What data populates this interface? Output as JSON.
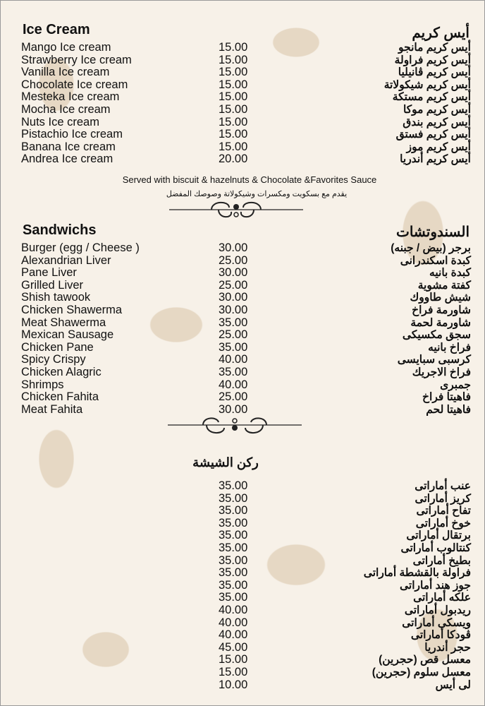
{
  "ice_cream": {
    "title_en": "Ice Cream",
    "title_ar": "أيس كريم",
    "items": [
      {
        "en": "Mango Ice cream",
        "price": "15.00",
        "ar": "أيس كريم مانجو"
      },
      {
        "en": "Strawberry Ice cream",
        "price": "15.00",
        "ar": "أيس كريم فراولة"
      },
      {
        "en": "Vanilla Ice cream",
        "price": "15.00",
        "ar": "أيس كريم ڤانيليا"
      },
      {
        "en": "Chocolate Ice cream",
        "price": "15.00",
        "ar": "أيس كريم شيكولاتة"
      },
      {
        "en": "Mesteka Ice cream",
        "price": "15.00",
        "ar": "أيس كريم مستكة"
      },
      {
        "en": "Mocha Ice cream",
        "price": "15.00",
        "ar": "أيس كريم موكا"
      },
      {
        "en": "Nuts Ice cream",
        "price": "15.00",
        "ar": "أيس كريم بندق"
      },
      {
        "en": "Pistachio Ice cream",
        "price": "15.00",
        "ar": "أيس كريم فستق"
      },
      {
        "en": "Banana Ice cream",
        "price": "15.00",
        "ar": "أيس كريم موز"
      },
      {
        "en": "Andrea Ice cream",
        "price": "20.00",
        "ar": "أيس كريم أندريا"
      }
    ],
    "note_en": "Served with biscuit & hazelnuts & Chocolate &Favorites Sauce",
    "note_ar": "يقدم مع بسكويت ومكسرات وشيكولاتة وصوصك المفضل"
  },
  "sandwiches": {
    "title_en": "Sandwichs",
    "title_ar": "السندوتشات",
    "items": [
      {
        "en": "Burger (egg / Cheese )",
        "price": "30.00",
        "ar": "برجر (بيض / جبنه)"
      },
      {
        "en": "Alexandrian Liver",
        "price": "25.00",
        "ar": "كبدة اسكندرانى"
      },
      {
        "en": "Pane Liver",
        "price": "30.00",
        "ar": "كبدة بانيه"
      },
      {
        "en": "Grilled Liver",
        "price": "25.00",
        "ar": "كفتة مشوية"
      },
      {
        "en": "Shish tawook",
        "price": "30.00",
        "ar": "شيش طاووك"
      },
      {
        "en": "Chicken Shawerma",
        "price": "30.00",
        "ar": "شاورمة فراخ"
      },
      {
        "en": "Meat Shawerma",
        "price": "35.00",
        "ar": "شاورمة لحمة"
      },
      {
        "en": "Mexican Sausage",
        "price": "25.00",
        "ar": "سجق مكسيكى"
      },
      {
        "en": "Chicken Pane",
        "price": "35.00",
        "ar": "فراخ بانيه"
      },
      {
        "en": "Spicy Crispy",
        "price": "40.00",
        "ar": "كرسبى سبايسى"
      },
      {
        "en": "Chicken Alagric",
        "price": "35.00",
        "ar": "فراخ الاجريك"
      },
      {
        "en": "Shrimps",
        "price": "40.00",
        "ar": "جمبرى"
      },
      {
        "en": "Chicken Fahita",
        "price": "25.00",
        "ar": "فاهيتا فراخ"
      },
      {
        "en": "Meat Fahita",
        "price": "30.00",
        "ar": "فاهيتا لحم"
      }
    ]
  },
  "shisha": {
    "title_ar": "ركن الشيشة",
    "items": [
      {
        "price": "35.00",
        "ar": "عنب أماراتى"
      },
      {
        "price": "35.00",
        "ar": "كريز أماراتى"
      },
      {
        "price": "35.00",
        "ar": "تفاح أماراتى"
      },
      {
        "price": "35.00",
        "ar": "خوخ أماراتى"
      },
      {
        "price": "35.00",
        "ar": "برتقال أماراتى"
      },
      {
        "price": "35.00",
        "ar": "كنتالوب أماراتى"
      },
      {
        "price": "35.00",
        "ar": "بطيخ أماراتى"
      },
      {
        "price": "35.00",
        "ar": "فراولة بالقشطة أماراتى"
      },
      {
        "price": "35.00",
        "ar": "جوز هند أماراتى"
      },
      {
        "price": "35.00",
        "ar": "علكه أماراتى"
      },
      {
        "price": "40.00",
        "ar": "ريدبول أماراتى"
      },
      {
        "price": "40.00",
        "ar": "ويسكى أماراتى"
      },
      {
        "price": "40.00",
        "ar": "ڤودكا أماراتى"
      },
      {
        "price": "45.00",
        "ar": "حجر أندريا"
      },
      {
        "price": "15.00",
        "ar": "معسل قص (حجرين)"
      },
      {
        "price": "15.00",
        "ar": "معسل سلوم (حجرين)"
      },
      {
        "price": "10.00",
        "ar": "لى أيس"
      }
    ]
  },
  "colors": {
    "background": "#f7f1e8",
    "pattern": "#e6d8c4",
    "text": "#111111"
  }
}
